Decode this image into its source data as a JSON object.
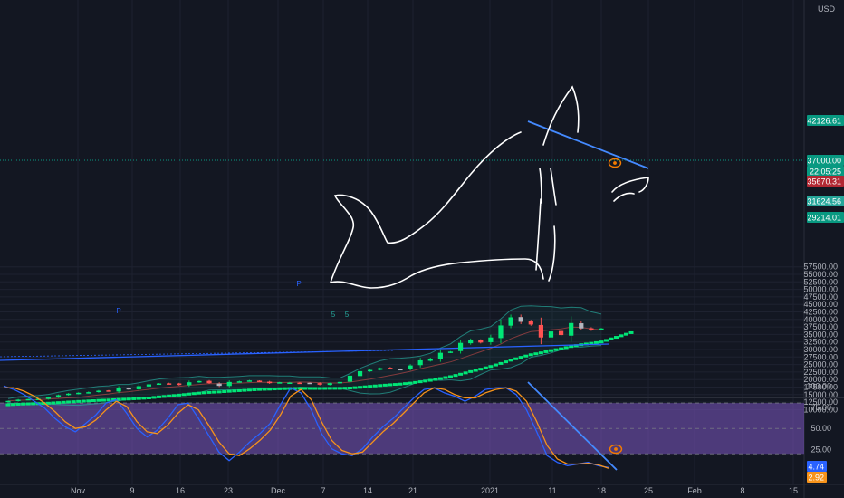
{
  "header": {
    "currency": "USD"
  },
  "chart_data": [
    {
      "type": "candlestick",
      "title": "",
      "y_unit": "USD",
      "ylim": [
        8500,
        58500
      ],
      "y_ticks": [
        10000,
        12500,
        15000,
        17500,
        20000,
        22500,
        25000,
        27500,
        30000,
        32500,
        35000,
        37500,
        40000,
        42500,
        45000,
        47500,
        50000,
        52500,
        55000,
        57500
      ],
      "x_labels": [
        "Nov",
        "9",
        "16",
        "23",
        "Dec",
        "7",
        "14",
        "21",
        "2021",
        "11",
        "18",
        "25",
        "Feb",
        "8",
        "15"
      ],
      "price_labels": [
        {
          "value": "42126.61",
          "color": "#089981"
        },
        {
          "value": "37000.00",
          "color": "#089981"
        },
        {
          "value": "22:05:25",
          "color": "#089981"
        },
        {
          "value": "35670.31",
          "color": "#b22833"
        },
        {
          "value": "31624.56",
          "color": "#26a69a"
        },
        {
          "value": "29214.01",
          "color": "#089981"
        }
      ],
      "markers": [
        {
          "text": "P",
          "color": "#2962ff"
        },
        {
          "text": "P",
          "color": "#2962ff"
        },
        {
          "text": "5",
          "color": "#26a69a"
        },
        {
          "text": "5",
          "color": "#26a69a"
        }
      ],
      "close_values": [
        12900,
        13300,
        13500,
        13600,
        14100,
        14800,
        15300,
        15600,
        15800,
        16300,
        16100,
        17200,
        16700,
        17800,
        18400,
        18700,
        18600,
        18200,
        19100,
        19500,
        18800,
        17900,
        19200,
        19400,
        19700,
        19300,
        18800,
        19100,
        19000,
        18900,
        18700,
        18300,
        18800,
        19200,
        21300,
        22800,
        23200,
        23800,
        23600,
        23400,
        24700,
        26400,
        27000,
        28900,
        29300,
        32200,
        33100,
        32300,
        34000,
        38000,
        40700,
        39200,
        38300,
        34000,
        36000,
        34800,
        38800,
        37000,
        36500,
        37000
      ]
    },
    {
      "type": "line",
      "title": "",
      "ylim": [
        0,
        100
      ],
      "y_ticks": [
        0,
        25,
        50,
        75,
        100
      ],
      "band": [
        20,
        80
      ],
      "badges": [
        {
          "value": "4.74",
          "color": "#2962ff"
        },
        {
          "value": "2.92",
          "color": "#f7931a"
        }
      ],
      "series": [
        {
          "color": "#2962ff",
          "values": [
            100,
            96,
            90,
            82,
            74,
            62,
            52,
            46,
            56,
            66,
            80,
            84,
            68,
            50,
            40,
            48,
            62,
            78,
            80,
            62,
            42,
            22,
            12,
            22,
            34,
            44,
            56,
            78,
            98,
            92,
            72,
            44,
            26,
            20,
            18,
            26,
            40,
            52,
            62,
            74,
            86,
            96,
            98,
            92,
            88,
            82,
            88,
            96,
            98,
            98,
            90,
            72,
            46,
            18,
            10,
            6,
            8,
            10,
            6,
            4
          ]
        },
        {
          "color": "#f7931a",
          "values": [
            98,
            98,
            94,
            88,
            80,
            70,
            58,
            50,
            52,
            60,
            72,
            82,
            76,
            58,
            46,
            44,
            54,
            68,
            78,
            72,
            54,
            34,
            20,
            18,
            26,
            36,
            48,
            66,
            88,
            96,
            84,
            58,
            36,
            24,
            20,
            22,
            34,
            46,
            56,
            68,
            80,
            92,
            98,
            96,
            90,
            86,
            86,
            92,
            96,
            98,
            94,
            82,
            58,
            30,
            14,
            8,
            8,
            9,
            7,
            3
          ]
        }
      ]
    }
  ]
}
